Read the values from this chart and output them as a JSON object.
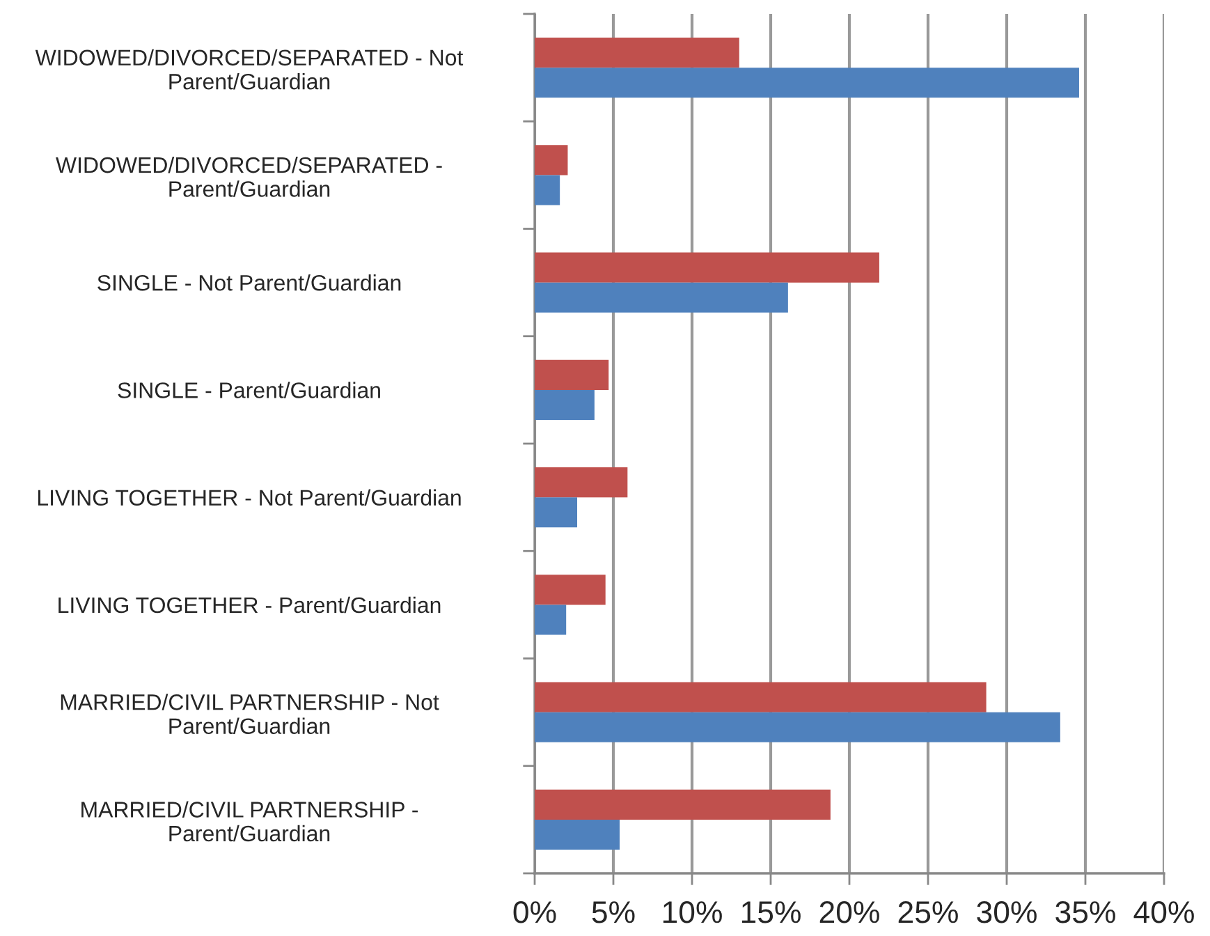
{
  "chart_data": {
    "type": "bar",
    "orientation": "horizontal",
    "categories": [
      "WIDOWED/DIVORCED/SEPARATED - Not Parent/Guardian",
      "WIDOWED/DIVORCED/SEPARATED - Parent/Guardian",
      "SINGLE - Not Parent/Guardian",
      "SINGLE - Parent/Guardian",
      "LIVING TOGETHER - Not Parent/Guardian",
      "LIVING TOGETHER - Parent/Guardian",
      "MARRIED/CIVIL PARTNERSHIP - Not Parent/Guardian",
      "MARRIED/CIVIL PARTNERSHIP - Parent/Guardian"
    ],
    "series": [
      {
        "color": "#c0504d",
        "values": [
          13.0,
          2.1,
          21.9,
          4.7,
          5.9,
          4.5,
          28.7,
          18.8
        ]
      },
      {
        "color": "#4f81bd",
        "values": [
          34.6,
          1.6,
          16.1,
          3.8,
          2.7,
          2.0,
          33.4,
          5.4
        ]
      }
    ],
    "xlim": [
      0,
      40
    ],
    "xticks": [
      {
        "value": 0,
        "label": "0%"
      },
      {
        "value": 5,
        "label": "5%"
      },
      {
        "value": 10,
        "label": "10%"
      },
      {
        "value": 15,
        "label": "15%"
      },
      {
        "value": 20,
        "label": "20%"
      },
      {
        "value": 25,
        "label": "25%"
      },
      {
        "value": 30,
        "label": "30%"
      },
      {
        "value": 35,
        "label": "35%"
      },
      {
        "value": 40,
        "label": "40%"
      }
    ],
    "grid": "x"
  }
}
